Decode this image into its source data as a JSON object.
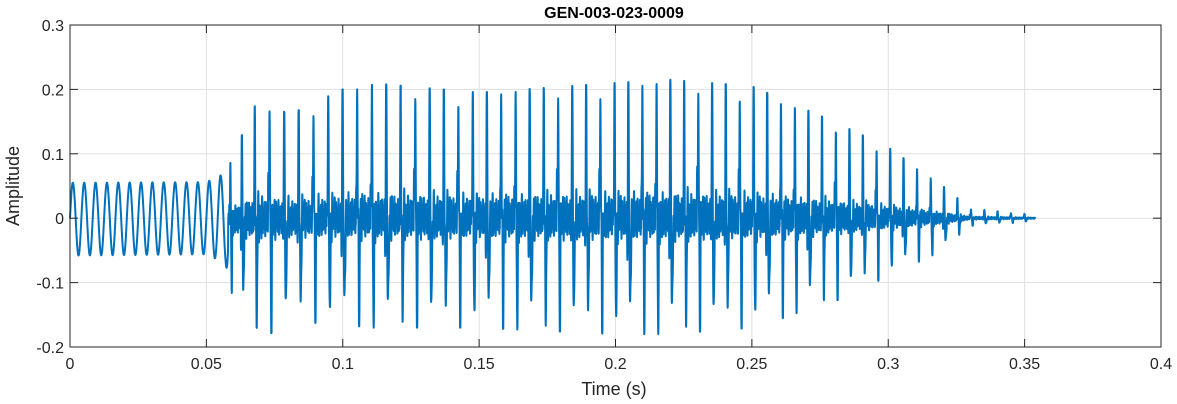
{
  "chart_data": {
    "type": "line",
    "title": "GEN-003-023-0009",
    "xlabel": "Time (s)",
    "ylabel": "Amplitude",
    "xlim": [
      0,
      0.4
    ],
    "ylim": [
      -0.2,
      0.3
    ],
    "xticks": [
      0,
      0.05,
      0.1,
      0.15,
      0.2,
      0.25,
      0.3,
      0.35,
      0.4
    ],
    "xtick_labels": [
      "0",
      "0.05",
      "0.1",
      "0.15",
      "0.2",
      "0.25",
      "0.3",
      "0.35",
      "0.4"
    ],
    "yticks": [
      -0.2,
      -0.1,
      0,
      0.1,
      0.2,
      0.3
    ],
    "ytick_labels": [
      "-0.2",
      "-0.1",
      "0",
      "0.1",
      "0.2",
      "0.3"
    ],
    "grid": true,
    "legend": "none",
    "series": [
      {
        "color": "#0072BD",
        "x_range": [
          0,
          0.354
        ],
        "envelope": [
          {
            "t": 0.0,
            "max": 0.055,
            "min": -0.058
          },
          {
            "t": 0.05,
            "max": 0.056,
            "min": -0.056
          },
          {
            "t": 0.057,
            "max": 0.07,
            "min": -0.07
          },
          {
            "t": 0.06,
            "max": 0.1,
            "min": -0.13
          },
          {
            "t": 0.07,
            "max": 0.195,
            "min": -0.19
          },
          {
            "t": 0.08,
            "max": 0.16,
            "min": -0.16
          },
          {
            "t": 0.1,
            "max": 0.2,
            "min": -0.165
          },
          {
            "t": 0.11,
            "max": 0.21,
            "min": -0.17
          },
          {
            "t": 0.15,
            "max": 0.195,
            "min": -0.17
          },
          {
            "t": 0.2,
            "max": 0.21,
            "min": -0.18
          },
          {
            "t": 0.22,
            "max": 0.215,
            "min": -0.18
          },
          {
            "t": 0.25,
            "max": 0.205,
            "min": -0.17
          },
          {
            "t": 0.28,
            "max": 0.15,
            "min": -0.13
          },
          {
            "t": 0.3,
            "max": 0.11,
            "min": -0.09
          },
          {
            "t": 0.32,
            "max": 0.05,
            "min": -0.05
          },
          {
            "t": 0.33,
            "max": 0.015,
            "min": -0.012
          },
          {
            "t": 0.354,
            "max": 0.005,
            "min": -0.005
          }
        ],
        "fundamental_hz": [
          {
            "t": 0.0,
            "f": 240
          },
          {
            "t": 0.06,
            "f": 240
          },
          {
            "t": 0.07,
            "f": 185
          },
          {
            "t": 0.35,
            "f": 205
          }
        ]
      }
    ]
  }
}
